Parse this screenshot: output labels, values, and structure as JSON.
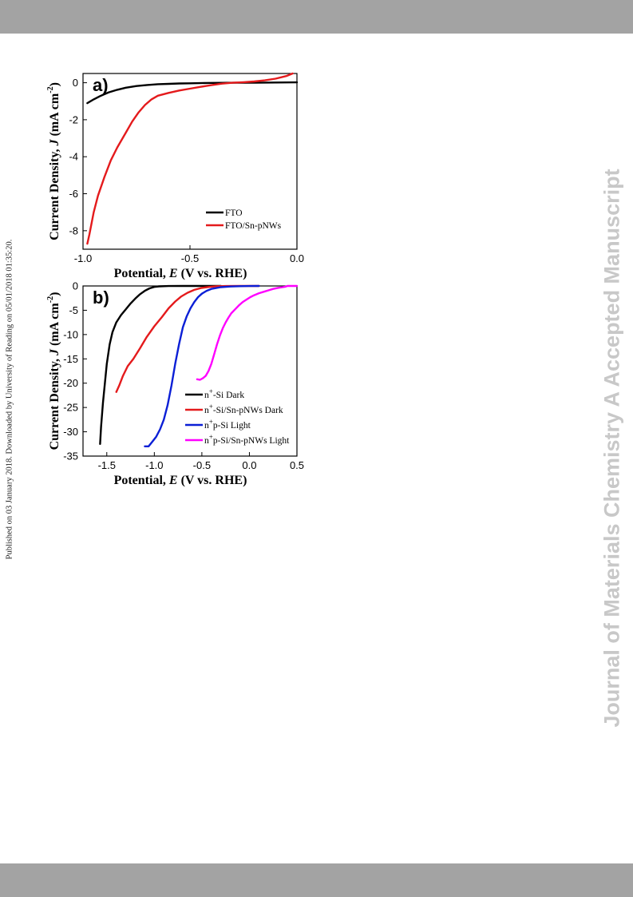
{
  "side_text": "Published on 03 January 2018. Downloaded by University of Reading on 05/01/2018 01:35:20.",
  "watermark": "Journal of Materials Chemistry A Accepted Manuscript",
  "chart_data": [
    {
      "type": "line",
      "panel_label": "a)",
      "xlabel": "Potential, E (V vs. RHE)",
      "ylabel": "Current Density, J (mA cm-2)",
      "xlim": [
        -1.0,
        0.0
      ],
      "ylim": [
        -9,
        0.5
      ],
      "xticks": [
        -1.0,
        -0.5,
        0.0
      ],
      "xtick_labels": [
        "-1.0",
        "-0.5",
        "0.0"
      ],
      "yticks": [
        0,
        -2,
        -4,
        -6,
        -8
      ],
      "ytick_labels": [
        "0",
        "-2",
        "-4",
        "-6",
        "-8"
      ],
      "legend_position": "bottom-right",
      "series": [
        {
          "name": "FTO",
          "color": "#000000",
          "x": [
            -0.98,
            -0.95,
            -0.92,
            -0.88,
            -0.84,
            -0.8,
            -0.75,
            -0.7,
            -0.65,
            -0.6,
            -0.55,
            -0.5,
            -0.4,
            -0.3,
            -0.2,
            -0.1,
            0.0
          ],
          "y": [
            -1.1,
            -0.9,
            -0.72,
            -0.52,
            -0.38,
            -0.27,
            -0.18,
            -0.12,
            -0.08,
            -0.06,
            -0.04,
            -0.03,
            -0.01,
            0.0,
            0.0,
            0.01,
            0.02
          ]
        },
        {
          "name": "FTO/Sn-pNWs",
          "color": "#e41a1c",
          "x": [
            -0.98,
            -0.97,
            -0.95,
            -0.93,
            -0.9,
            -0.87,
            -0.84,
            -0.8,
            -0.77,
            -0.74,
            -0.71,
            -0.68,
            -0.65,
            -0.6,
            -0.55,
            -0.5,
            -0.45,
            -0.4,
            -0.35,
            -0.3,
            -0.25,
            -0.2,
            -0.15,
            -0.1,
            -0.05,
            -0.02
          ],
          "y": [
            -8.7,
            -8.2,
            -7.0,
            -6.1,
            -5.1,
            -4.2,
            -3.5,
            -2.7,
            -2.1,
            -1.6,
            -1.2,
            -0.9,
            -0.7,
            -0.55,
            -0.42,
            -0.32,
            -0.22,
            -0.13,
            -0.05,
            0.0,
            0.03,
            0.07,
            0.13,
            0.22,
            0.36,
            0.5
          ]
        }
      ]
    },
    {
      "type": "line",
      "panel_label": "b)",
      "xlabel": "Potential, E (V vs. RHE)",
      "ylabel": "Current Density, J (mA cm-2)",
      "xlim": [
        -1.75,
        0.5
      ],
      "ylim": [
        -35,
        0
      ],
      "xticks": [
        -1.5,
        -1.0,
        -0.5,
        0.0,
        0.5
      ],
      "xtick_labels": [
        "-1.5",
        "-1.0",
        "-0.5",
        "0.0",
        "0.5"
      ],
      "yticks": [
        0,
        -5,
        -10,
        -15,
        -20,
        -25,
        -30,
        -35
      ],
      "ytick_labels": [
        "0",
        "-5",
        "-10",
        "-15",
        "-20",
        "-25",
        "-30",
        "-35"
      ],
      "legend_position": "bottom-right",
      "series": [
        {
          "name": "n+-Si Dark",
          "color": "#000000",
          "x": [
            -1.57,
            -1.56,
            -1.54,
            -1.52,
            -1.5,
            -1.47,
            -1.44,
            -1.4,
            -1.35,
            -1.3,
            -1.25,
            -1.2,
            -1.15,
            -1.1,
            -1.05,
            -1.0,
            -0.95,
            -0.85,
            -0.7,
            -0.5,
            -0.3
          ],
          "y": [
            -32.5,
            -29.0,
            -24.0,
            -20.0,
            -16.0,
            -12.0,
            -9.5,
            -7.5,
            -6.0,
            -4.8,
            -3.6,
            -2.6,
            -1.7,
            -1.0,
            -0.5,
            -0.2,
            -0.08,
            -0.02,
            0.0,
            0.0,
            0.0
          ]
        },
        {
          "name": "n+-Si/Sn-pNWs Dark",
          "color": "#e41a1c",
          "x": [
            -1.4,
            -1.37,
            -1.33,
            -1.28,
            -1.22,
            -1.15,
            -1.08,
            -1.0,
            -0.92,
            -0.85,
            -0.78,
            -0.72,
            -0.65,
            -0.58,
            -0.5,
            -0.42,
            -0.35,
            -0.25,
            -0.1,
            0.1
          ],
          "y": [
            -21.8,
            -20.5,
            -18.5,
            -16.5,
            -15.0,
            -12.8,
            -10.5,
            -8.3,
            -6.4,
            -4.6,
            -3.2,
            -2.2,
            -1.4,
            -0.8,
            -0.4,
            -0.2,
            -0.08,
            -0.02,
            0.0,
            0.0
          ]
        },
        {
          "name": "n+p-Si Light",
          "color": "#0b1fd6",
          "x": [
            -1.1,
            -1.06,
            -1.02,
            -0.98,
            -0.94,
            -0.9,
            -0.86,
            -0.82,
            -0.78,
            -0.74,
            -0.7,
            -0.66,
            -0.62,
            -0.58,
            -0.54,
            -0.5,
            -0.45,
            -0.4,
            -0.3,
            -0.2,
            -0.1,
            0.0,
            0.1
          ],
          "y": [
            -33.0,
            -33.0,
            -32.0,
            -31.0,
            -29.5,
            -27.5,
            -24.5,
            -20.5,
            -16.0,
            -12.0,
            -8.5,
            -6.3,
            -4.6,
            -3.3,
            -2.3,
            -1.6,
            -1.0,
            -0.6,
            -0.25,
            -0.12,
            -0.05,
            -0.02,
            0.0
          ]
        },
        {
          "name": "n+p-Si/Sn-pNWs Light",
          "color": "#ff00ff",
          "x": [
            -0.55,
            -0.52,
            -0.49,
            -0.46,
            -0.43,
            -0.4,
            -0.37,
            -0.34,
            -0.31,
            -0.28,
            -0.25,
            -0.22,
            -0.19,
            -0.15,
            -0.11,
            -0.07,
            -0.03,
            0.01,
            0.05,
            0.1,
            0.15,
            0.2,
            0.25,
            0.3,
            0.35,
            0.38,
            0.4,
            0.45,
            0.5
          ],
          "y": [
            -19.2,
            -19.3,
            -19.0,
            -18.5,
            -17.5,
            -16.0,
            -14.0,
            -12.0,
            -10.2,
            -8.7,
            -7.5,
            -6.5,
            -5.6,
            -4.8,
            -4.0,
            -3.3,
            -2.8,
            -2.3,
            -1.9,
            -1.5,
            -1.2,
            -0.9,
            -0.6,
            -0.4,
            -0.25,
            -0.15,
            0.0,
            0.0,
            0.0
          ]
        }
      ]
    }
  ]
}
